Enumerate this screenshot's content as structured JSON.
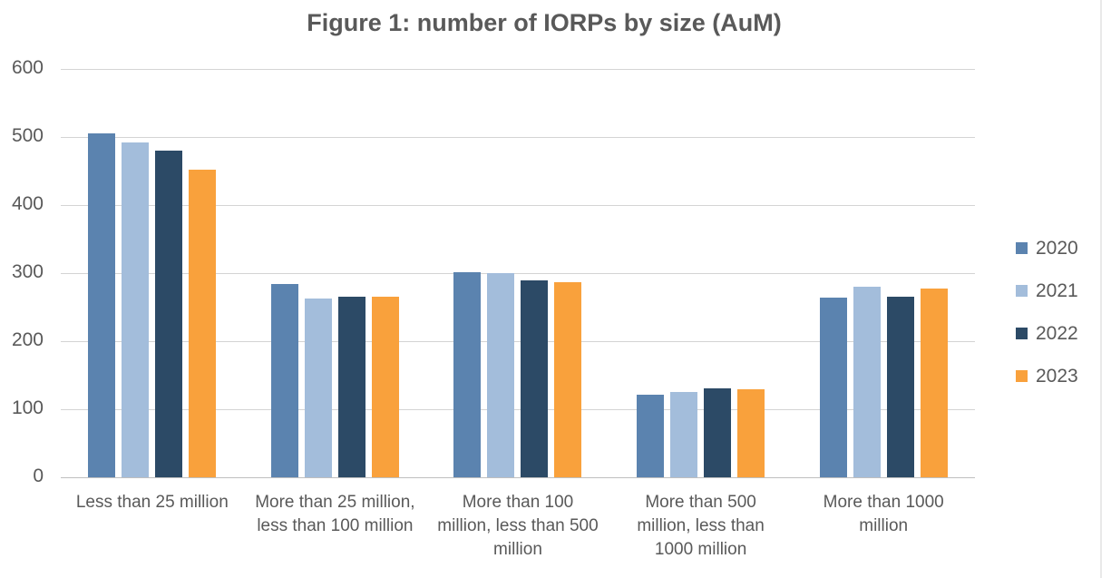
{
  "chart_data": {
    "type": "bar",
    "title": "Figure 1: number of IORPs by size (AuM)",
    "categories": [
      "Less than 25 million",
      "More than 25 million, less than 100 million",
      "More than 100 million, less than 500 million",
      "More than 500 million, less than 1000 million",
      "More than 1000 million"
    ],
    "categories_display": [
      [
        "Less than 25 million"
      ],
      [
        "More than 25 million,",
        "less than 100 million"
      ],
      [
        "More than 100",
        "million, less than 500",
        "million"
      ],
      [
        "More than 500",
        "million, less than",
        "1000 million"
      ],
      [
        "More than 1000",
        "million"
      ]
    ],
    "series": [
      {
        "name": "2020",
        "color": "#5B83AF",
        "values": [
          506,
          284,
          301,
          122,
          264
        ]
      },
      {
        "name": "2021",
        "color": "#A3BDDB",
        "values": [
          492,
          263,
          300,
          125,
          280
        ]
      },
      {
        "name": "2022",
        "color": "#2C4A66",
        "values": [
          480,
          265,
          290,
          131,
          265
        ]
      },
      {
        "name": "2023",
        "color": "#F9A13C",
        "values": [
          452,
          266,
          287,
          130,
          277
        ]
      }
    ],
    "xlabel": "",
    "ylabel": "",
    "ylim": [
      0,
      600
    ],
    "yticks": [
      0,
      100,
      200,
      300,
      400,
      500,
      600
    ],
    "grid": true,
    "legend_position": "right",
    "colors": {
      "title_text": "#595959",
      "axis_text": "#595959",
      "gridline": "#D4D4D4",
      "axis_line": "#BFBFBF",
      "background": "#FFFFFF"
    }
  }
}
